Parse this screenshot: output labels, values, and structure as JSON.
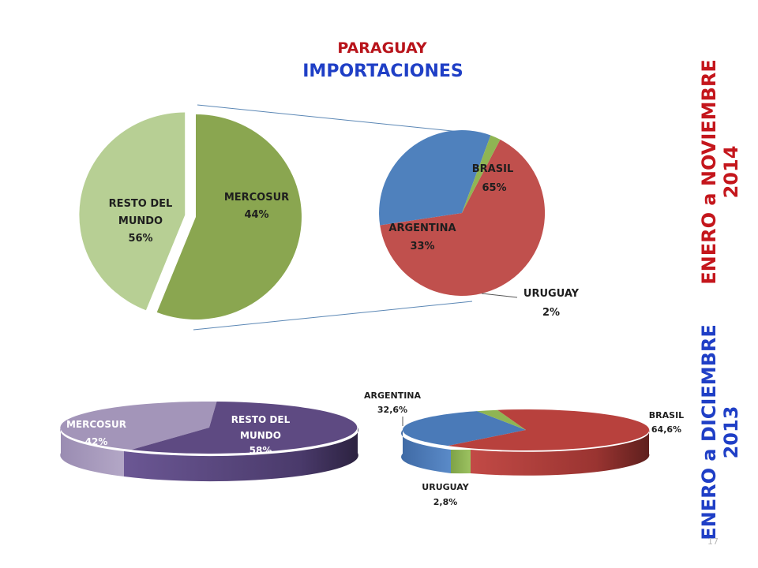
{
  "header": {
    "country": "PARAGUAY",
    "title": "IMPORTACIONES"
  },
  "side_labels": {
    "period_2014_line1": "ENERO a NOVIEMBRE",
    "period_2014_line2": "2014",
    "period_2013_line1": "ENERO a DICIEMBRE",
    "period_2013_line2": "2013"
  },
  "page_number": "17",
  "colors": {
    "resto_2014": "#8aa650",
    "mercosur_2014": "#b7cf94",
    "brasil_2014": "#c0504d",
    "argentina_2014": "#4f81bd",
    "uruguay_2014": "#8fb553",
    "resto_2013": "#5e4a82",
    "mercosur_2013": "#a395b9",
    "brasil_2013": "#b8413d",
    "argentina_2013": "#4a7ab8",
    "uruguay_2013": "#8fb553"
  },
  "chart_data": [
    {
      "type": "pie",
      "period": "ENERO a NOVIEMBRE 2014",
      "categories": [
        "RESTO DEL MUNDO",
        "MERCOSUR"
      ],
      "labels": [
        [
          "RESTO DEL",
          "MUNDO",
          "56%"
        ],
        [
          "MERCOSUR",
          "44%"
        ]
      ],
      "values": [
        56,
        44
      ]
    },
    {
      "type": "pie",
      "period": "ENERO a NOVIEMBRE 2014",
      "categories": [
        "BRASIL",
        "ARGENTINA",
        "URUGUAY"
      ],
      "labels": [
        [
          "BRASIL",
          "65%"
        ],
        [
          "ARGENTINA",
          "33%"
        ],
        [
          "URUGUAY",
          "2%"
        ]
      ],
      "values": [
        65,
        33,
        2
      ]
    },
    {
      "type": "pie",
      "period": "ENERO a DICIEMBRE 2013",
      "categories": [
        "MERCOSUR",
        "RESTO DEL MUNDO"
      ],
      "labels": [
        [
          "MERCOSUR",
          "42%"
        ],
        [
          "RESTO DEL",
          "MUNDO",
          "58%"
        ]
      ],
      "values": [
        42,
        58
      ]
    },
    {
      "type": "pie",
      "period": "ENERO a DICIEMBRE 2013",
      "categories": [
        "ARGENTINA",
        "URUGUAY",
        "BRASIL"
      ],
      "labels": [
        [
          "ARGENTINA",
          "32,6%"
        ],
        [
          "URUGUAY",
          "2,8%"
        ],
        [
          "BRASIL",
          "64,6%"
        ]
      ],
      "values": [
        32.6,
        2.8,
        64.6
      ]
    }
  ]
}
